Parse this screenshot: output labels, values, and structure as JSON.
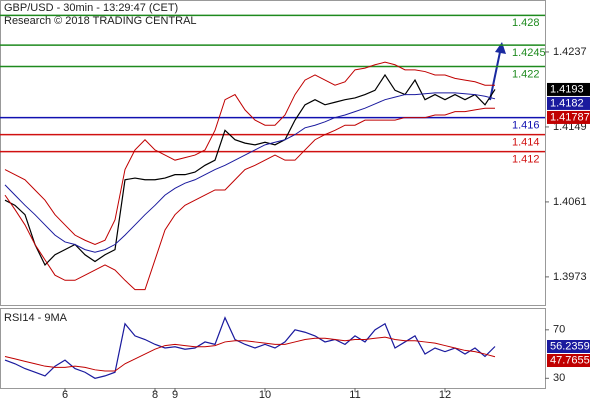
{
  "chart_data": [
    {
      "type": "line",
      "title": "GBP/USD - 30min - 13:29:47 (CET)",
      "subtitle": "Research © 2018 TRADING CENTRAL",
      "categories": [
        null,
        null,
        null,
        null,
        null,
        null,
        "6",
        null,
        null,
        null,
        null,
        null,
        null,
        null,
        null,
        "8",
        null,
        "9",
        null,
        null,
        null,
        null,
        null,
        null,
        null,
        null,
        "10",
        null,
        null,
        null,
        null,
        null,
        null,
        null,
        null,
        "11",
        null,
        null,
        null,
        null,
        null,
        null,
        null,
        null,
        "12",
        null,
        null,
        null,
        null,
        null
      ],
      "ylim": [
        1.394,
        1.4298
      ],
      "yticks": [
        1.3973,
        1.4061,
        1.4149,
        1.4237
      ],
      "series": [
        {
          "color": "#000000",
          "values": [
            1.4063,
            1.4057,
            1.4046,
            1.4011,
            1.3987,
            1.3999,
            1.4005,
            1.4011,
            1.3999,
            1.3991,
            1.3999,
            1.4005,
            1.4087,
            1.4089,
            1.4087,
            1.4087,
            1.4089,
            1.4093,
            1.4093,
            1.4096,
            1.4104,
            1.411,
            1.4145,
            1.4134,
            1.413,
            1.4128,
            1.4131,
            1.4128,
            1.4134,
            1.4157,
            1.4175,
            1.4181,
            1.4175,
            1.4178,
            1.4181,
            1.4183,
            1.4187,
            1.4192,
            1.421,
            1.4192,
            1.4187,
            1.4204,
            1.4181,
            1.4187,
            1.4181,
            1.4187,
            1.4181,
            1.4187,
            1.4175,
            1.4193
          ]
        },
        {
          "color": "#1a1a9e",
          "values": [
            1.4081,
            1.4069,
            1.4057,
            1.4046,
            1.4034,
            1.4022,
            1.4014,
            1.4011,
            1.4005,
            1.4002,
            1.4005,
            1.4011,
            1.4022,
            1.4034,
            1.4046,
            1.4057,
            1.4069,
            1.4077,
            1.4083,
            1.4087,
            1.4093,
            1.4099,
            1.4104,
            1.411,
            1.4116,
            1.4122,
            1.4128,
            1.4131,
            1.4134,
            1.414,
            1.4148,
            1.4151,
            1.4155,
            1.416,
            1.4163,
            1.4167,
            1.4171,
            1.4176,
            1.4181,
            1.4184,
            1.4187,
            1.4187,
            1.4188,
            1.4189,
            1.4189,
            1.4189,
            1.4188,
            1.4187,
            1.4185,
            1.4182
          ]
        },
        {
          "color": "#c00000",
          "values": [
            1.4099,
            1.4093,
            1.4087,
            1.4075,
            1.4063,
            1.4046,
            1.4034,
            1.4022,
            1.4016,
            1.4011,
            1.4016,
            1.404,
            1.4099,
            1.4122,
            1.4134,
            1.4122,
            1.4116,
            1.411,
            1.4113,
            1.4116,
            1.4122,
            1.4145,
            1.4181,
            1.4187,
            1.4169,
            1.4157,
            1.4151,
            1.4151,
            1.4163,
            1.4187,
            1.4204,
            1.421,
            1.4204,
            1.4198,
            1.4202,
            1.4216,
            1.4218,
            1.4222,
            1.4225,
            1.4222,
            1.4216,
            1.4216,
            1.4214,
            1.421,
            1.421,
            1.4206,
            1.4204,
            1.4202,
            1.4198,
            1.4198
          ]
        },
        {
          "color": "#c00000",
          "values": [
            1.4069,
            1.4052,
            1.4034,
            1.4011,
            1.3993,
            1.3975,
            1.3969,
            1.3969,
            1.3975,
            1.3981,
            1.3987,
            1.3981,
            1.3969,
            1.3958,
            1.3958,
            1.3993,
            1.4028,
            1.4046,
            1.4057,
            1.4063,
            1.4069,
            1.4075,
            1.4075,
            1.4087,
            1.4099,
            1.4104,
            1.411,
            1.4116,
            1.411,
            1.411,
            1.4122,
            1.4134,
            1.414,
            1.4145,
            1.4151,
            1.4151,
            1.4157,
            1.4157,
            1.4157,
            1.4157,
            1.416,
            1.416,
            1.416,
            1.4163,
            1.4163,
            1.4167,
            1.4167,
            1.4169,
            1.4171,
            1.4171
          ]
        }
      ],
      "levels": [
        {
          "value": 1.428,
          "color": "#1e8a1e"
        },
        {
          "value": 1.4245,
          "color": "#1e8a1e"
        },
        {
          "value": 1.422,
          "color": "#1e8a1e"
        },
        {
          "value": 1.416,
          "color": "#1010b0"
        },
        {
          "value": 1.414,
          "color": "#d01010"
        },
        {
          "value": 1.412,
          "color": "#d01010"
        }
      ],
      "red_tag": 1.41787
    },
    {
      "type": "line",
      "title": "RSI14 - 9MA",
      "ylim": [
        22,
        88
      ],
      "yticks": [
        30,
        70
      ],
      "series": [
        {
          "color": "#1a1a9e",
          "values": [
            45,
            42,
            38,
            35,
            32,
            40,
            45,
            38,
            35,
            30,
            32,
            35,
            75,
            65,
            62,
            58,
            55,
            56,
            54,
            55,
            60,
            58,
            80,
            62,
            58,
            55,
            58,
            55,
            60,
            70,
            68,
            65,
            60,
            62,
            58,
            65,
            60,
            70,
            75,
            55,
            60,
            65,
            50,
            55,
            52,
            55,
            50,
            55,
            48,
            56.2359
          ]
        },
        {
          "color": "#c00000",
          "values": [
            48,
            46,
            44,
            42,
            40,
            39,
            39,
            40,
            39,
            37,
            36,
            36,
            42,
            46,
            50,
            54,
            57,
            58,
            57,
            56,
            56,
            57,
            60,
            61,
            61,
            60,
            59,
            58,
            58,
            60,
            62,
            63,
            63,
            62,
            61,
            62,
            62,
            63,
            64,
            62,
            61,
            61,
            60,
            59,
            57,
            55,
            53,
            52,
            50,
            47.7655
          ]
        }
      ]
    }
  ]
}
